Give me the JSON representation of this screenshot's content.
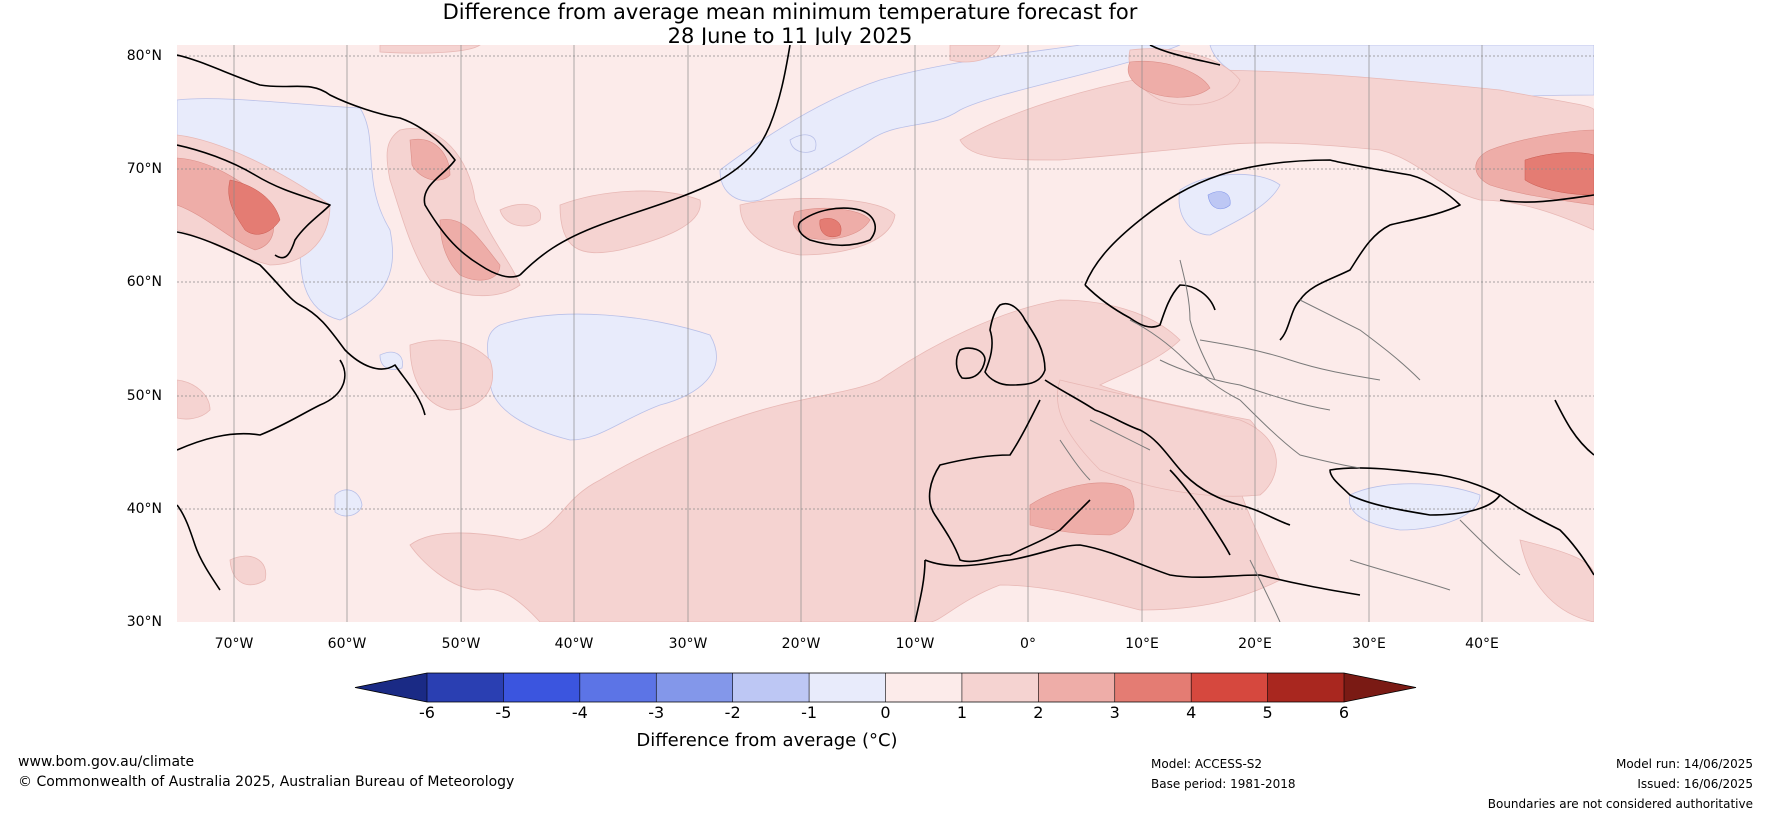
{
  "title": {
    "line1": "Difference from average mean minimum temperature forecast for",
    "line2": "28 June to 11 July 2025"
  },
  "map": {
    "lat_labels": [
      "80°N",
      "70°N",
      "60°N",
      "50°N",
      "40°N",
      "30°N"
    ],
    "lon_labels": [
      "70°W",
      "60°W",
      "50°W",
      "40°W",
      "30°W",
      "20°W",
      "10°W",
      "0°",
      "10°E",
      "20°E",
      "30°E",
      "40°E"
    ],
    "extent": {
      "lon": [
        -75,
        50
      ],
      "lat": [
        30,
        81
      ]
    }
  },
  "colorbar": {
    "ticks": [
      "-6",
      "-5",
      "-4",
      "-3",
      "-2",
      "-1",
      "0",
      "1",
      "2",
      "3",
      "4",
      "5",
      "6"
    ],
    "colors": [
      "#1a2a85",
      "#2a3fb2",
      "#3b55df",
      "#5c74e6",
      "#8397ea",
      "#bdc7f4",
      "#e8ebfb",
      "#fcebea",
      "#f5d3d1",
      "#eeada8",
      "#e47c73",
      "#d6483e",
      "#a9271f",
      "#7a1a14"
    ],
    "label": "Difference from average (°C)"
  },
  "footer": {
    "website": "www.bom.gov.au/climate",
    "copyright": "© Commonwealth of Australia 2025, Australian Bureau of Meteorology",
    "model": "Model: ACCESS-S2",
    "base_period": "Base period: 1981-2018",
    "model_run": "Model run: 14/06/2025",
    "issued": "Issued: 16/06/2025",
    "disclaimer": "Boundaries are not considered authoritative"
  }
}
